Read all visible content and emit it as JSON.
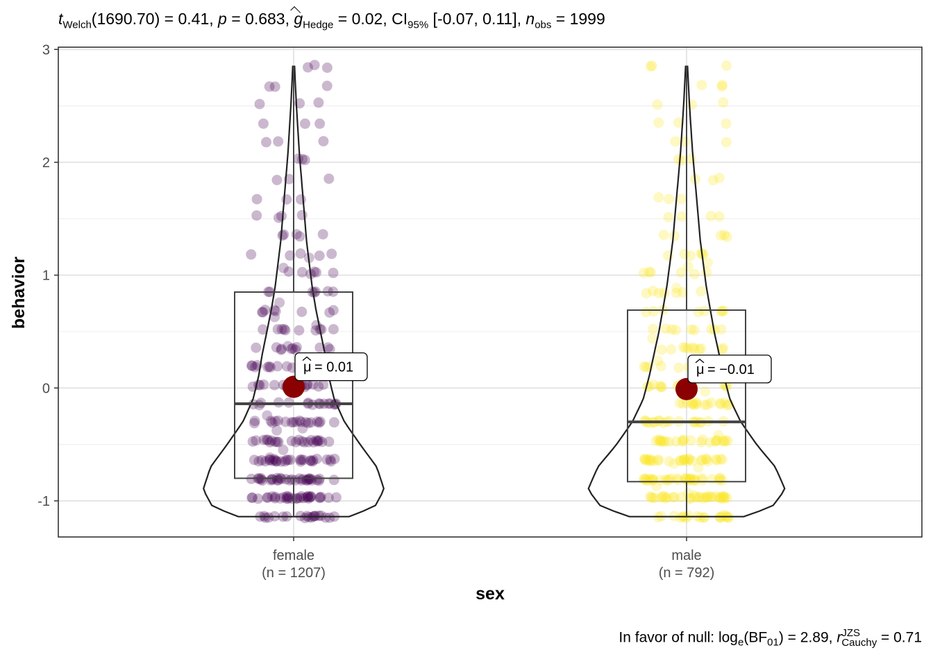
{
  "subtitle": {
    "t_sym": "t",
    "t_sub": "Welch",
    "t_val": "(1690.70) = 0.41, ",
    "p_sym": "p",
    "p_val": " = 0.683, ",
    "g_sym": "g",
    "g_sub": "Hedge",
    "g_val": " = 0.02, CI",
    "ci_sub": "95%",
    "ci_val": " [-0.07, 0.11], ",
    "n_sym": "n",
    "n_sub": "obs",
    "n_val": " = 1999"
  },
  "caption": {
    "prefix": "In favor of null: log",
    "log_sub": "e",
    "bf": "(BF",
    "bf_sub": "01",
    "bf_val": ") = 2.89, ",
    "r_sym": "r",
    "r_sup": "JZS",
    "r_sub": "Cauchy",
    "r_val": " = 0.71"
  },
  "chart_data": {
    "type": "violin-box-jitter",
    "xlabel": "sex",
    "ylabel": "behavior",
    "ylim": [
      -1.32,
      3.02
    ],
    "yticks": [
      -1,
      0,
      1,
      2,
      3
    ],
    "ytick_labels": [
      "-1",
      "0",
      "1",
      "2",
      "3"
    ],
    "grid": true,
    "groups": [
      {
        "name": "female",
        "n_label": "(n = 1207)",
        "color": "#440154",
        "box": {
          "q1": -0.8,
          "median": -0.14,
          "q3": 0.85,
          "whisker_low": -1.14,
          "whisker_high": 2.85
        },
        "violin": {
          "min": -1.14,
          "max": 2.85
        },
        "mean": 0.01,
        "mean_label": "= 0.01",
        "levels": [
          -1.14,
          -0.97,
          -0.81,
          -0.64,
          -0.47,
          -0.3,
          -0.14,
          0.02,
          0.19,
          0.35,
          0.52,
          0.68,
          0.85,
          1.02,
          1.18,
          1.35,
          1.52,
          1.68,
          1.85,
          2.02,
          2.18,
          2.35,
          2.52,
          2.68,
          2.85
        ]
      },
      {
        "name": "male",
        "n_label": "(n = 792)",
        "color": "#FDE725",
        "box": {
          "q1": -0.83,
          "median": -0.3,
          "q3": 0.69,
          "whisker_low": -1.14,
          "whisker_high": 2.85
        },
        "violin": {
          "min": -1.14,
          "max": 2.85
        },
        "mean": -0.01,
        "mean_label": "= −0.01",
        "levels": [
          -1.14,
          -0.97,
          -0.81,
          -0.64,
          -0.47,
          -0.3,
          -0.14,
          0.02,
          0.19,
          0.35,
          0.52,
          0.68,
          0.85,
          1.02,
          1.18,
          1.35,
          1.52,
          1.68,
          1.85,
          2.02,
          2.18,
          2.35,
          2.52,
          2.68,
          2.85
        ]
      }
    ],
    "mean_color": "#8B0000"
  }
}
